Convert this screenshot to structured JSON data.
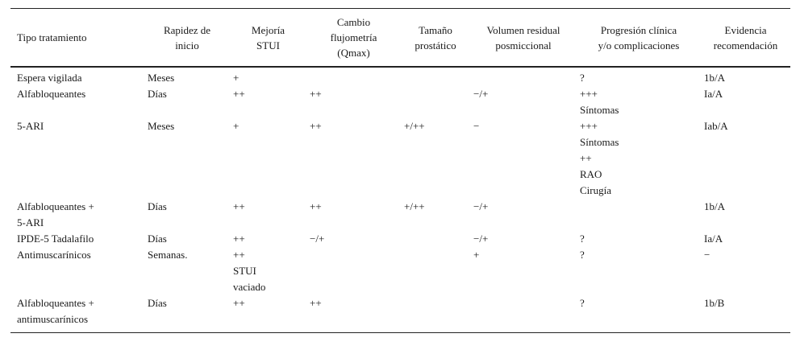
{
  "table": {
    "headers": [
      [
        "Tipo tratamiento"
      ],
      [
        "Rapidez de",
        "inicio"
      ],
      [
        "Mejoría",
        "STUI"
      ],
      [
        "Cambio",
        "flujometría",
        "(Qmax)"
      ],
      [
        "Tamaño",
        "prostático"
      ],
      [
        "Volumen residual",
        "posmiccional"
      ],
      [
        "Progresión clínica",
        "y/o complicaciones"
      ],
      [
        "Evidencia",
        "recomendación"
      ]
    ],
    "rows": [
      [
        [
          "Espera vigilada"
        ],
        [
          "Meses"
        ],
        [
          "+"
        ],
        [],
        [],
        [],
        [
          "?"
        ],
        [
          "1b/A"
        ]
      ],
      [
        [
          "Alfabloqueantes"
        ],
        [
          "Días"
        ],
        [
          "++"
        ],
        [
          "++"
        ],
        [],
        [
          "−/+"
        ],
        [
          "+++",
          "Síntomas"
        ],
        [
          "Ia/A"
        ]
      ],
      [
        [
          "5-ARI"
        ],
        [
          "Meses"
        ],
        [
          "+"
        ],
        [
          "++"
        ],
        [
          "+/++"
        ],
        [
          "−"
        ],
        [
          "+++",
          "Síntomas",
          "++",
          "RAO",
          "Cirugía"
        ],
        [
          "Iab/A"
        ]
      ],
      [
        [
          "Alfabloqueantes +",
          "5-ARI"
        ],
        [
          "Días"
        ],
        [
          "++"
        ],
        [
          "++"
        ],
        [
          "+/++"
        ],
        [
          "−/+"
        ],
        [],
        [
          "1b/A"
        ]
      ],
      [
        [
          "IPDE-5 Tadalafilo"
        ],
        [
          "Días"
        ],
        [
          "++"
        ],
        [
          "−/+"
        ],
        [],
        [
          "−/+"
        ],
        [
          "?"
        ],
        [
          "Ia/A"
        ]
      ],
      [
        [
          "Antimuscarínicos"
        ],
        [
          "Semanas."
        ],
        [
          "++",
          "STUI",
          "vaciado"
        ],
        [],
        [],
        [
          "+"
        ],
        [
          "?"
        ],
        [
          "−"
        ]
      ],
      [
        [
          "Alfabloqueantes +",
          "antimuscarínicos"
        ],
        [
          "Días"
        ],
        [
          "++"
        ],
        [
          "++"
        ],
        [],
        [],
        [
          "?"
        ],
        [
          "1b/B"
        ]
      ]
    ]
  }
}
